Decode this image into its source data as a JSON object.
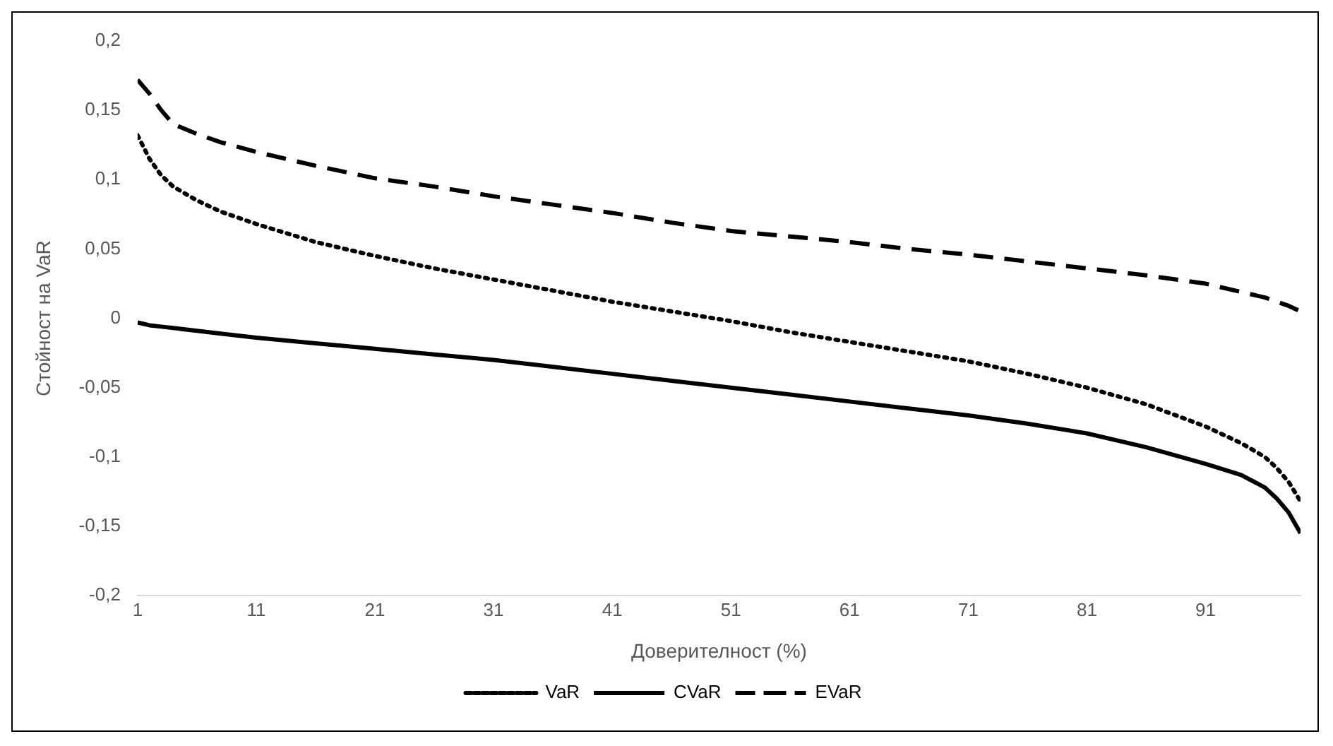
{
  "chart_data": {
    "type": "line",
    "xlabel": "Доверителност (%)",
    "ylabel": "Стойност на VaR",
    "x": [
      1,
      2,
      3,
      4,
      6,
      8,
      11,
      16,
      21,
      26,
      31,
      36,
      41,
      46,
      51,
      56,
      61,
      66,
      71,
      76,
      81,
      86,
      91,
      94,
      96,
      97,
      98,
      99
    ],
    "series": [
      {
        "name": "VaR",
        "color": "#000000",
        "line_style": "dotted",
        "values": [
          0.132,
          0.115,
          0.103,
          0.095,
          0.085,
          0.077,
          0.068,
          0.055,
          0.045,
          0.036,
          0.028,
          0.02,
          0.012,
          0.005,
          -0.002,
          -0.01,
          -0.017,
          -0.024,
          -0.031,
          -0.04,
          -0.05,
          -0.062,
          -0.078,
          -0.09,
          -0.1,
          -0.108,
          -0.118,
          -0.132
        ]
      },
      {
        "name": "CVaR",
        "color": "#000000",
        "line_style": "solid",
        "values": [
          -0.003,
          -0.005,
          -0.006,
          -0.007,
          -0.009,
          -0.011,
          -0.014,
          -0.018,
          -0.022,
          -0.026,
          -0.03,
          -0.035,
          -0.04,
          -0.045,
          -0.05,
          -0.055,
          -0.06,
          -0.065,
          -0.07,
          -0.076,
          -0.083,
          -0.093,
          -0.105,
          -0.113,
          -0.122,
          -0.13,
          -0.14,
          -0.155
        ]
      },
      {
        "name": "EVaR",
        "color": "#000000",
        "line_style": "dashed",
        "values": [
          0.172,
          0.162,
          0.15,
          0.14,
          0.133,
          0.127,
          0.12,
          0.11,
          0.101,
          0.095,
          0.088,
          0.082,
          0.076,
          0.069,
          0.063,
          0.059,
          0.055,
          0.05,
          0.046,
          0.041,
          0.036,
          0.031,
          0.025,
          0.019,
          0.015,
          0.012,
          0.009,
          0.005
        ]
      }
    ],
    "xlim": [
      1,
      99
    ],
    "xticks": [
      1,
      11,
      21,
      31,
      41,
      51,
      61,
      71,
      81,
      91
    ],
    "ylim": [
      -0.2,
      0.2
    ],
    "yticks": [
      {
        "value": -0.2,
        "label": "-0,2"
      },
      {
        "value": -0.15,
        "label": "-0,15"
      },
      {
        "value": -0.1,
        "label": "-0,1"
      },
      {
        "value": -0.05,
        "label": "-0,05"
      },
      0,
      {
        "value": 0.05,
        "label": "0,05"
      },
      {
        "value": 0.1,
        "label": "0,1"
      },
      {
        "value": 0.15,
        "label": "0,15"
      },
      {
        "value": 0.2,
        "label": "0,2"
      }
    ],
    "grid": false,
    "legend": "bottom",
    "marker": "none"
  }
}
